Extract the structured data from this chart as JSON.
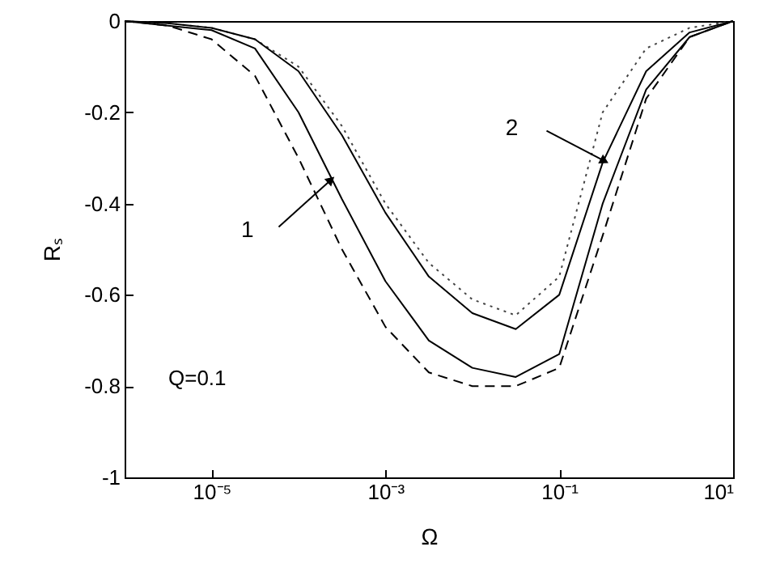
{
  "chart_data": {
    "type": "line",
    "xlabel": "Ω",
    "ylabel": "Rₛ",
    "log": "x",
    "grid": false,
    "xlim": [
      1e-06,
      10
    ],
    "xticks": [
      {
        "value": 1e-05,
        "label": "10⁻⁵"
      },
      {
        "value": 0.001,
        "label": "10⁻³"
      },
      {
        "value": 0.1,
        "label": "10⁻¹"
      },
      {
        "value": 10,
        "label": "10¹"
      }
    ],
    "ylim": [
      -1,
      0
    ],
    "yticks": [
      -1,
      -0.8,
      -0.6,
      -0.4,
      -0.2,
      0
    ],
    "x": [
      1e-06,
      3.16e-06,
      1e-05,
      3.16e-05,
      0.0001,
      0.000316,
      0.001,
      0.00316,
      0.01,
      0.0316,
      0.1,
      0.316,
      1,
      3.16,
      10
    ],
    "series": [
      {
        "color": "#444444",
        "line_style": "dotted",
        "values": [
          0,
          -0.005,
          -0.015,
          -0.04,
          -0.1,
          -0.23,
          -0.4,
          -0.53,
          -0.61,
          -0.645,
          -0.56,
          -0.2,
          -0.06,
          -0.015,
          0
        ]
      },
      {
        "color": "#000000",
        "line_style": "solid",
        "values": [
          0,
          -0.005,
          -0.015,
          -0.04,
          -0.11,
          -0.25,
          -0.42,
          -0.56,
          -0.64,
          -0.675,
          -0.6,
          -0.31,
          -0.11,
          -0.025,
          0
        ]
      },
      {
        "color": "#000000",
        "line_style": "solid",
        "values": [
          0,
          -0.01,
          -0.02,
          -0.06,
          -0.2,
          -0.39,
          -0.57,
          -0.7,
          -0.76,
          -0.78,
          -0.73,
          -0.4,
          -0.15,
          -0.035,
          0
        ]
      },
      {
        "color": "#000000",
        "line_style": "dashed",
        "values": [
          0,
          -0.01,
          -0.04,
          -0.12,
          -0.3,
          -0.5,
          -0.67,
          -0.77,
          -0.8,
          -0.8,
          -0.76,
          -0.47,
          -0.17,
          -0.035,
          0
        ]
      }
    ],
    "annotations": [
      {
        "text": "1",
        "x": 0.00023,
        "y": -0.35
      },
      {
        "text": "2",
        "x": 0.32,
        "y": -0.305
      },
      "Q=0.1"
    ]
  }
}
